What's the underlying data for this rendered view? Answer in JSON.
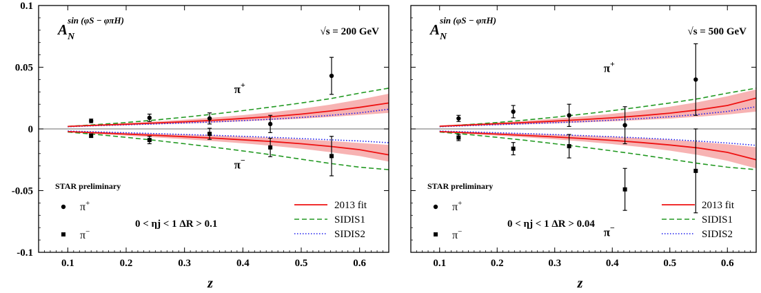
{
  "chart_data": [
    {
      "type": "scatter",
      "observable_main": "A",
      "observable_sub": "N",
      "observable_sup": "sin (φS − φπH)",
      "energy": "√s = 200 GeV",
      "preliminary": "STAR preliminary",
      "cuts": "0 < ηj < 1    ΔR > 0.1",
      "xlabel": "z",
      "xlim": [
        0.05,
        0.65
      ],
      "ylim": [
        -0.1,
        0.1
      ],
      "xticks": [
        "0.1",
        "0.2",
        "0.3",
        "0.4",
        "0.5",
        "0.6"
      ],
      "yticks": [
        "0.1",
        "0.05",
        "0",
        "-0.05",
        "-0.1"
      ],
      "curve_labels": {
        "pos": "π+",
        "neg": "π−",
        "pos_y": 0.029,
        "neg_y": -0.032
      },
      "legend": [
        "2013 fit",
        "SIDIS1",
        "SIDIS2"
      ],
      "points_legend": [
        "π+",
        "π−"
      ],
      "pi_plus": [
        {
          "x": 0.14,
          "y": 0.0065,
          "err": 0.0015
        },
        {
          "x": 0.24,
          "y": 0.009,
          "err": 0.003
        },
        {
          "x": 0.343,
          "y": 0.0085,
          "err": 0.0045
        },
        {
          "x": 0.447,
          "y": 0.004,
          "err": 0.007
        },
        {
          "x": 0.552,
          "y": 0.043,
          "err": 0.015
        }
      ],
      "pi_minus": [
        {
          "x": 0.14,
          "y": -0.0055,
          "err": 0.0015
        },
        {
          "x": 0.24,
          "y": -0.009,
          "err": 0.003
        },
        {
          "x": 0.343,
          "y": -0.004,
          "err": 0.0045
        },
        {
          "x": 0.447,
          "y": -0.015,
          "err": 0.0075
        },
        {
          "x": 0.552,
          "y": -0.022,
          "err": 0.016
        }
      ],
      "fit_pos": {
        "x": [
          0.1,
          0.15,
          0.2,
          0.25,
          0.3,
          0.35,
          0.4,
          0.45,
          0.5,
          0.55,
          0.6,
          0.65
        ],
        "y": [
          0.002,
          0.003,
          0.0038,
          0.0048,
          0.0058,
          0.007,
          0.0085,
          0.01,
          0.012,
          0.0145,
          0.0175,
          0.021
        ]
      },
      "band_pos": {
        "upper": [
          0.0025,
          0.0036,
          0.0047,
          0.006,
          0.0075,
          0.0092,
          0.0112,
          0.0135,
          0.0163,
          0.0197,
          0.0238,
          0.0285
        ],
        "lower": [
          0.0015,
          0.0023,
          0.003,
          0.0037,
          0.0044,
          0.0052,
          0.0062,
          0.0072,
          0.0083,
          0.0097,
          0.0113,
          0.013
        ]
      },
      "sidis1_pos": [
        0.002,
        0.0035,
        0.0052,
        0.0072,
        0.0095,
        0.012,
        0.0148,
        0.0178,
        0.021,
        0.0245,
        0.029,
        0.033
      ],
      "sidis2_pos": [
        0.0018,
        0.0026,
        0.0033,
        0.004,
        0.0048,
        0.0057,
        0.0067,
        0.0079,
        0.0093,
        0.011,
        0.013,
        0.016
      ],
      "fit_neg": {
        "x": [
          0.1,
          0.15,
          0.2,
          0.25,
          0.3,
          0.35,
          0.4,
          0.45,
          0.5,
          0.55,
          0.6,
          0.65
        ],
        "y": [
          -0.0022,
          -0.0032,
          -0.0042,
          -0.0052,
          -0.0063,
          -0.0075,
          -0.0088,
          -0.0102,
          -0.012,
          -0.0142,
          -0.0168,
          -0.021
        ]
      },
      "band_neg": {
        "upper": [
          -0.0016,
          -0.0024,
          -0.0031,
          -0.0038,
          -0.0045,
          -0.0053,
          -0.0062,
          -0.0072,
          -0.0084,
          -0.0098,
          -0.0114,
          -0.013
        ],
        "lower": [
          -0.0028,
          -0.0041,
          -0.0054,
          -0.0068,
          -0.0083,
          -0.0099,
          -0.0117,
          -0.0137,
          -0.016,
          -0.0188,
          -0.022,
          -0.0265
        ]
      },
      "sidis1_neg": [
        -0.0025,
        -0.0045,
        -0.0068,
        -0.0093,
        -0.012,
        -0.0148,
        -0.0178,
        -0.021,
        -0.0245,
        -0.028,
        -0.031,
        -0.033
      ],
      "sidis2_neg": [
        -0.0017,
        -0.0024,
        -0.0031,
        -0.0038,
        -0.0045,
        -0.0052,
        -0.006,
        -0.0068,
        -0.0078,
        -0.0088,
        -0.0098,
        -0.0112
      ]
    },
    {
      "type": "scatter",
      "observable_main": "A",
      "observable_sub": "N",
      "observable_sup": "sin (φS − φπH)",
      "energy": "√s = 500 GeV",
      "preliminary": "STAR preliminary",
      "cuts": "0 < ηj < 1    ΔR > 0.04",
      "xlabel": "z",
      "xlim": [
        0.05,
        0.65
      ],
      "ylim": [
        -0.1,
        0.1
      ],
      "xticks": [
        "0.1",
        "0.2",
        "0.3",
        "0.4",
        "0.5",
        "0.6"
      ],
      "yticks": [],
      "curve_labels": {
        "pos": "π+",
        "neg": "π−",
        "pos_y": 0.046,
        "neg_y": -0.087
      },
      "legend": [
        "2013 fit",
        "SIDIS1",
        "SIDIS2"
      ],
      "points_legend": [
        "π+",
        "π−"
      ],
      "pi_plus": [
        {
          "x": 0.133,
          "y": 0.0085,
          "err": 0.0025
        },
        {
          "x": 0.228,
          "y": 0.014,
          "err": 0.005
        },
        {
          "x": 0.325,
          "y": 0.011,
          "err": 0.009
        },
        {
          "x": 0.422,
          "y": 0.003,
          "err": 0.015
        },
        {
          "x": 0.545,
          "y": 0.04,
          "err": 0.029
        }
      ],
      "pi_minus": [
        {
          "x": 0.133,
          "y": -0.007,
          "err": 0.0025
        },
        {
          "x": 0.228,
          "y": -0.016,
          "err": 0.005
        },
        {
          "x": 0.325,
          "y": -0.014,
          "err": 0.0095
        },
        {
          "x": 0.422,
          "y": -0.049,
          "err": 0.017
        },
        {
          "x": 0.545,
          "y": -0.034,
          "err": 0.034
        }
      ],
      "fit_pos": {
        "x": [
          0.1,
          0.15,
          0.2,
          0.25,
          0.3,
          0.35,
          0.4,
          0.45,
          0.5,
          0.55,
          0.6,
          0.65
        ],
        "y": [
          0.0022,
          0.0032,
          0.0042,
          0.0052,
          0.0063,
          0.0076,
          0.009,
          0.0107,
          0.0128,
          0.0155,
          0.019,
          0.025
        ]
      },
      "band_pos": {
        "upper": [
          0.0028,
          0.004,
          0.0052,
          0.0066,
          0.0082,
          0.0101,
          0.0123,
          0.0149,
          0.018,
          0.0218,
          0.0265,
          0.032
        ],
        "lower": [
          0.0016,
          0.0024,
          0.0031,
          0.0038,
          0.0045,
          0.0053,
          0.0062,
          0.0072,
          0.0084,
          0.0099,
          0.0117,
          0.014
        ]
      },
      "sidis1_pos": [
        0.002,
        0.0035,
        0.0052,
        0.0072,
        0.0095,
        0.012,
        0.0148,
        0.0178,
        0.021,
        0.0245,
        0.029,
        0.033
      ],
      "sidis2_pos": [
        0.0018,
        0.0026,
        0.0034,
        0.0042,
        0.005,
        0.006,
        0.0071,
        0.0084,
        0.0099,
        0.0118,
        0.0142,
        0.018
      ],
      "fit_neg": {
        "x": [
          0.1,
          0.15,
          0.2,
          0.25,
          0.3,
          0.35,
          0.4,
          0.45,
          0.5,
          0.55,
          0.6,
          0.65
        ],
        "y": [
          -0.0022,
          -0.0032,
          -0.0042,
          -0.0053,
          -0.0065,
          -0.0078,
          -0.0093,
          -0.011,
          -0.013,
          -0.0155,
          -0.019,
          -0.025
        ]
      },
      "band_neg": {
        "upper": [
          -0.0016,
          -0.0024,
          -0.0031,
          -0.0038,
          -0.0046,
          -0.0054,
          -0.0064,
          -0.0075,
          -0.0088,
          -0.0104,
          -0.0124,
          -0.0148
        ],
        "lower": [
          -0.0028,
          -0.0041,
          -0.0054,
          -0.0068,
          -0.0084,
          -0.0102,
          -0.0123,
          -0.0147,
          -0.0176,
          -0.0212,
          -0.0258,
          -0.032
        ]
      },
      "sidis1_neg": [
        -0.0025,
        -0.0045,
        -0.0068,
        -0.0093,
        -0.012,
        -0.0148,
        -0.0178,
        -0.021,
        -0.0245,
        -0.028,
        -0.031,
        -0.033
      ],
      "sidis2_neg": [
        -0.0017,
        -0.0024,
        -0.0031,
        -0.0038,
        -0.0046,
        -0.0054,
        -0.0063,
        -0.0073,
        -0.0085,
        -0.0099,
        -0.0114,
        -0.0133
      ]
    }
  ],
  "colors": {
    "fit": "#ee1111",
    "band": "#f7b3b3",
    "sidis1": "#229922",
    "sidis2": "#1a1aee",
    "points": "#000000",
    "zero_line": "#888888"
  }
}
